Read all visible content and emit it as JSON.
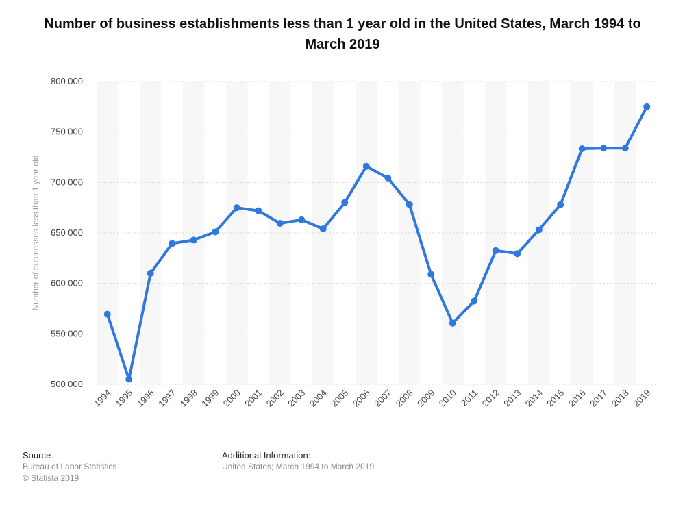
{
  "title": "Number of business establishments less than 1 year old in the United States, March 1994 to March 2019",
  "footer": {
    "source_heading": "Source",
    "source_lines": [
      "Bureau of Labor Statistics",
      "© Statista 2019"
    ],
    "additional_heading": "Additional Information:",
    "additional_text": "United States; March 1994 to March 2019"
  },
  "chart_data": {
    "type": "line",
    "title": "Number of business establishments less than 1 year old in the United States, March 1994 to March 2019",
    "ylabel": "Number of businesses less than 1 year old",
    "xlabel": "",
    "x": [
      "1994",
      "1995",
      "1996",
      "1997",
      "1998",
      "1999",
      "2000",
      "2001",
      "2002",
      "2003",
      "2004",
      "2005",
      "2006",
      "2007",
      "2008",
      "2009",
      "2010",
      "2011",
      "2012",
      "2013",
      "2014",
      "2015",
      "2016",
      "2017",
      "2018",
      "2019"
    ],
    "series": [
      {
        "values": [
          569500,
          505000,
          610000,
          639500,
          643000,
          651000,
          675000,
          672000,
          659500,
          663000,
          654000,
          680000,
          716000,
          704500,
          678000,
          609000,
          560500,
          582500,
          632500,
          629500,
          653000,
          678000,
          733500,
          734000,
          734000,
          775000
        ]
      }
    ],
    "ylim": [
      500000,
      800000
    ],
    "yticks": [
      500000,
      550000,
      600000,
      650000,
      700000,
      750000,
      800000
    ],
    "ytick_labels": [
      "500 000",
      "550 000",
      "600 000",
      "650 000",
      "700 000",
      "750 000",
      "800 000"
    ],
    "grid": true,
    "line_color": "#2f78de"
  }
}
